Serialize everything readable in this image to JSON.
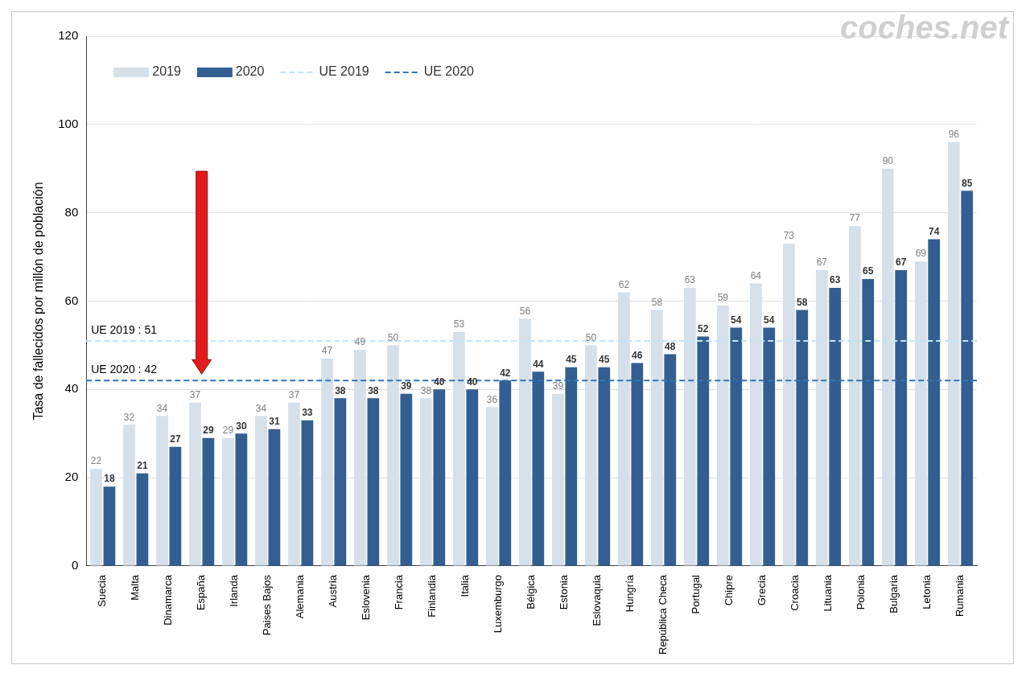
{
  "chart_data": {
    "type": "bar",
    "watermark": "coches.net",
    "y_label": "Tasa de fallecidos por millón de población",
    "categories": [
      "Suecia",
      "Malta",
      "Dinamarca",
      "España",
      "Irlanda",
      "Paises Bajos",
      "Alemania",
      "Austria",
      "Eslovenia",
      "Francia",
      "Finlandia",
      "Italia",
      "Luxemburgo",
      "Bélgica",
      "Estonia",
      "Eslovaquia",
      "Hungría",
      "República Checa",
      "Portugal",
      "Chipre",
      "Grecia",
      "Croacia",
      "Lituania",
      "Polonia",
      "Bulgaria",
      "Letonia",
      "Rumania"
    ],
    "series": [
      {
        "name": "2019",
        "color": "#d5e0eb",
        "values": [
          22,
          32,
          34,
          37,
          29,
          34,
          37,
          47,
          49,
          50,
          38,
          53,
          36,
          56,
          39,
          50,
          62,
          58,
          63,
          59,
          64,
          73,
          67,
          77,
          90,
          69,
          96
        ]
      },
      {
        "name": "2020",
        "color": "#335e91",
        "values": [
          18,
          21,
          27,
          29,
          30,
          31,
          33,
          38,
          38,
          39,
          40,
          40,
          42,
          44,
          45,
          45,
          46,
          48,
          52,
          54,
          54,
          58,
          63,
          65,
          67,
          74,
          85
        ]
      }
    ],
    "reference_lines": [
      {
        "name": "UE 2019",
        "value": 51,
        "label": "UE 2019 : 51",
        "color": "#c3e4f5",
        "line_style": "dashed"
      },
      {
        "name": "UE 2020",
        "value": 42,
        "label": "UE 2020 : 42",
        "color": "#2e75b6",
        "line_style": "dashed"
      }
    ],
    "ylim": [
      0,
      120
    ],
    "yticks": [
      0,
      20,
      40,
      60,
      80,
      100,
      120
    ],
    "grid": true,
    "legend": "upper left",
    "data_labels": true
  }
}
